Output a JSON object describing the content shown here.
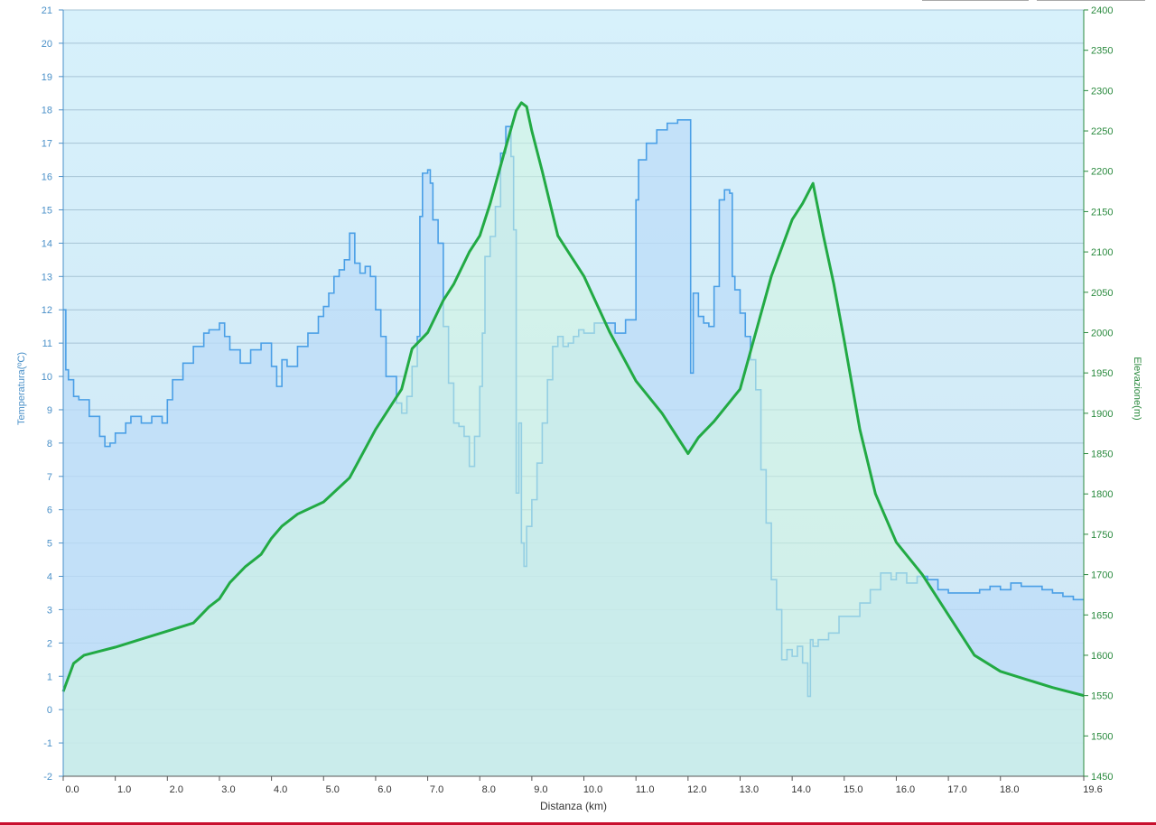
{
  "chart_data": {
    "type": "area",
    "xlabel": "Distanza  (km)",
    "ylabel_left": "Temperatura(ºC)",
    "ylabel_right": "Elevazione(m)",
    "xlim": [
      0,
      19.6
    ],
    "ylim_left": [
      -2,
      21
    ],
    "ylim_right": [
      1450,
      2400
    ],
    "x_tick_labels": [
      "0.0",
      "1.0",
      "2.0",
      "3.0",
      "4.0",
      "5.0",
      "6.0",
      "7.0",
      "8.0",
      "9.0",
      "10.0",
      "11.0",
      "12.0",
      "13.0",
      "14.0",
      "15.0",
      "16.0",
      "17.0",
      "18.0",
      "19.6"
    ],
    "x_ticks": [
      0,
      1,
      2,
      3,
      4,
      5,
      6,
      7,
      8,
      9,
      10,
      11,
      12,
      13,
      14,
      15,
      16,
      17,
      18,
      19.6
    ],
    "y_left_ticks": [
      -2,
      -1,
      0,
      1,
      2,
      3,
      4,
      5,
      6,
      7,
      8,
      9,
      10,
      11,
      12,
      13,
      14,
      15,
      16,
      17,
      18,
      19,
      20,
      21
    ],
    "y_right_ticks": [
      1450,
      1500,
      1550,
      1600,
      1650,
      1700,
      1750,
      1800,
      1850,
      1900,
      1950,
      2000,
      2050,
      2100,
      2150,
      2200,
      2250,
      2300,
      2350,
      2400
    ],
    "grid": true,
    "legend": "none",
    "series": [
      {
        "name": "Temperatura(ºC)",
        "axis": "left",
        "color": "#4a9fe6",
        "fill": "#bcdcf8",
        "x": [
          0,
          0.05,
          0.1,
          0.2,
          0.3,
          0.5,
          0.7,
          0.8,
          0.9,
          1.0,
          1.2,
          1.3,
          1.5,
          1.7,
          1.9,
          2.0,
          2.1,
          2.3,
          2.5,
          2.7,
          2.8,
          3.0,
          3.1,
          3.2,
          3.4,
          3.6,
          3.8,
          4.0,
          4.1,
          4.2,
          4.3,
          4.5,
          4.7,
          4.9,
          5.0,
          5.1,
          5.2,
          5.3,
          5.4,
          5.5,
          5.6,
          5.7,
          5.8,
          5.9,
          6.0,
          6.1,
          6.2,
          6.4,
          6.5,
          6.6,
          6.7,
          6.8,
          6.85,
          6.9,
          7.0,
          7.05,
          7.1,
          7.2,
          7.3,
          7.4,
          7.5,
          7.6,
          7.7,
          7.8,
          7.9,
          8.0,
          8.05,
          8.1,
          8.2,
          8.3,
          8.4,
          8.5,
          8.6,
          8.65,
          8.7,
          8.75,
          8.8,
          8.85,
          8.9,
          9.0,
          9.1,
          9.2,
          9.3,
          9.4,
          9.5,
          9.6,
          9.7,
          9.8,
          9.9,
          10.0,
          10.2,
          10.4,
          10.6,
          10.8,
          11.0,
          11.05,
          11.2,
          11.4,
          11.6,
          11.8,
          12.0,
          12.05,
          12.1,
          12.2,
          12.3,
          12.4,
          12.5,
          12.6,
          12.7,
          12.8,
          12.85,
          12.9,
          13.0,
          13.1,
          13.2,
          13.3,
          13.4,
          13.5,
          13.6,
          13.7,
          13.8,
          13.9,
          14.0,
          14.1,
          14.2,
          14.3,
          14.35,
          14.4,
          14.5,
          14.7,
          14.9,
          15.1,
          15.3,
          15.5,
          15.7,
          15.9,
          16.0,
          16.2,
          16.4,
          16.6,
          16.8,
          17.0,
          17.2,
          17.4,
          17.6,
          17.8,
          18.0,
          18.2,
          18.4,
          18.6,
          18.8,
          19.0,
          19.2,
          19.4,
          19.6
        ],
        "values": [
          12,
          10.2,
          9.9,
          9.4,
          9.3,
          8.8,
          8.2,
          7.9,
          8.0,
          8.3,
          8.6,
          8.8,
          8.6,
          8.8,
          8.6,
          9.3,
          9.9,
          10.4,
          10.9,
          11.3,
          11.4,
          11.6,
          11.2,
          10.8,
          10.4,
          10.8,
          11.0,
          10.3,
          9.7,
          10.5,
          10.3,
          10.9,
          11.3,
          11.8,
          12.1,
          12.5,
          13.0,
          13.2,
          13.5,
          14.3,
          13.4,
          13.1,
          13.3,
          13.0,
          12.0,
          11.2,
          10.0,
          9.2,
          8.9,
          9.4,
          10.3,
          11.2,
          14.8,
          16.1,
          16.2,
          15.8,
          14.7,
          14.0,
          11.5,
          9.8,
          8.6,
          8.5,
          8.2,
          7.3,
          8.2,
          9.7,
          11.3,
          13.6,
          14.2,
          15.1,
          16.7,
          17.5,
          16.6,
          14.4,
          6.5,
          8.6,
          5.0,
          4.3,
          5.5,
          6.3,
          7.4,
          8.6,
          9.9,
          10.9,
          11.2,
          10.9,
          11.0,
          11.2,
          11.4,
          11.3,
          11.6,
          11.6,
          11.3,
          11.7,
          15.3,
          16.5,
          17.0,
          17.4,
          17.6,
          17.7,
          17.7,
          10.1,
          12.5,
          11.8,
          11.6,
          11.5,
          12.7,
          15.3,
          15.6,
          15.5,
          13.0,
          12.6,
          11.9,
          11.2,
          10.5,
          9.6,
          7.2,
          5.6,
          3.9,
          3.0,
          1.5,
          1.8,
          1.6,
          1.9,
          1.4,
          0.4,
          2.1,
          1.9,
          2.1,
          2.3,
          2.8,
          2.8,
          3.2,
          3.6,
          4.1,
          3.9,
          4.1,
          3.8,
          4.0,
          3.9,
          3.6,
          3.5,
          3.5,
          3.5,
          3.6,
          3.7,
          3.6,
          3.8,
          3.7,
          3.7,
          3.6,
          3.5,
          3.4,
          3.3,
          3.3
        ]
      },
      {
        "name": "Elevazione(m)",
        "axis": "right",
        "color": "#22aa44",
        "fill": "#d2f5e0",
        "x": [
          0,
          0.2,
          0.4,
          0.7,
          1.0,
          1.5,
          2.0,
          2.5,
          2.8,
          3.0,
          3.2,
          3.5,
          3.8,
          4.0,
          4.2,
          4.5,
          5.0,
          5.5,
          6.0,
          6.5,
          6.7,
          7.0,
          7.3,
          7.5,
          7.8,
          8.0,
          8.2,
          8.5,
          8.7,
          8.8,
          8.9,
          9.0,
          9.2,
          9.5,
          10.0,
          10.5,
          11.0,
          11.5,
          12.0,
          12.2,
          12.5,
          13.0,
          13.3,
          13.6,
          14.0,
          14.2,
          14.4,
          14.6,
          14.8,
          15.0,
          15.3,
          15.6,
          16.0,
          16.5,
          17.0,
          17.5,
          18.0,
          18.5,
          19.0,
          19.6
        ],
        "values": [
          1555,
          1590,
          1600,
          1605,
          1610,
          1620,
          1630,
          1640,
          1660,
          1670,
          1690,
          1710,
          1725,
          1745,
          1760,
          1775,
          1790,
          1820,
          1880,
          1930,
          1980,
          2000,
          2040,
          2060,
          2100,
          2120,
          2160,
          2230,
          2275,
          2285,
          2280,
          2250,
          2200,
          2120,
          2070,
          2000,
          1940,
          1900,
          1850,
          1870,
          1890,
          1930,
          2000,
          2070,
          2140,
          2160,
          2185,
          2120,
          2060,
          1990,
          1880,
          1800,
          1740,
          1700,
          1650,
          1600,
          1580,
          1570,
          1560,
          1550
        ]
      }
    ]
  },
  "top_buttons": [
    {
      "label": ""
    },
    {
      "label": ""
    }
  ],
  "colors": {
    "plot_bg_top": "#d7f1fb",
    "plot_bg_bottom": "#cfe6f5",
    "grid": "#a7c4d6",
    "left_axis_text": "#4a90c8",
    "right_axis_text": "#2a8a3e",
    "bottom_axis_text": "#333333",
    "accent_rule": "#c8102e"
  }
}
